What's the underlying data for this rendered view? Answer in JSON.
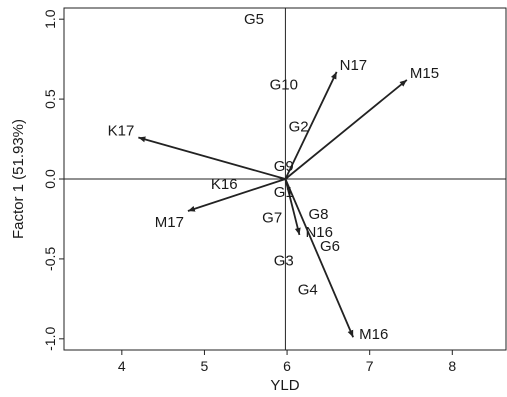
{
  "chart_data": {
    "type": "scatter",
    "subtype": "biplot",
    "xlabel": "YLD",
    "ylabel": "Factor 1 (51.93%)",
    "xlim": [
      3.3,
      8.65
    ],
    "ylim": [
      -1.07,
      1.07
    ],
    "xticks": [
      4,
      5,
      6,
      7,
      8
    ],
    "yticks": [
      -1.0,
      -0.5,
      0.0,
      0.5,
      1.0
    ],
    "ytick_labels": [
      "-1.0",
      "-0.5",
      "0.0",
      "0.5",
      "1.0"
    ],
    "reference_lines": {
      "x": 5.98,
      "y": 0.0
    },
    "origin": {
      "x": 5.98,
      "y": 0.0
    },
    "vectors": [
      {
        "label": "N17",
        "x": 6.6,
        "y": 0.67
      },
      {
        "label": "M15",
        "x": 7.45,
        "y": 0.62
      },
      {
        "label": "K17",
        "x": 4.2,
        "y": 0.26
      },
      {
        "label": "M17",
        "x": 4.8,
        "y": -0.2
      },
      {
        "label": "N16",
        "x": 6.15,
        "y": -0.35
      },
      {
        "label": "M16",
        "x": 6.8,
        "y": -0.99
      }
    ],
    "points": [
      {
        "label": "G5",
        "x": 5.6,
        "y": 1.0
      },
      {
        "label": "G10",
        "x": 5.96,
        "y": 0.59
      },
      {
        "label": "G2",
        "x": 6.14,
        "y": 0.33
      },
      {
        "label": "G9",
        "x": 5.96,
        "y": 0.08
      },
      {
        "label": "K16",
        "x": 5.24,
        "y": -0.03
      },
      {
        "label": "G1",
        "x": 5.96,
        "y": -0.08
      },
      {
        "label": "G8",
        "x": 6.38,
        "y": -0.22
      },
      {
        "label": "G7",
        "x": 5.82,
        "y": -0.24
      },
      {
        "label": "G6",
        "x": 6.52,
        "y": -0.42
      },
      {
        "label": "G3",
        "x": 5.96,
        "y": -0.51
      },
      {
        "label": "G4",
        "x": 6.25,
        "y": -0.69
      }
    ]
  }
}
